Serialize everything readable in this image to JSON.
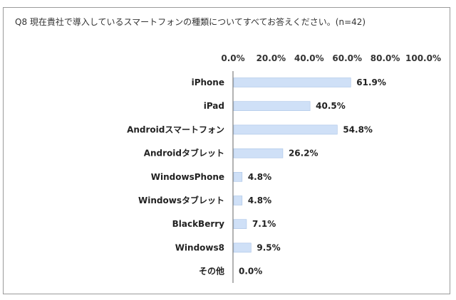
{
  "chart_data": {
    "type": "bar",
    "orientation": "horizontal",
    "title": "Q8 現在貴社で導入しているスマートフォンの種類についてすべてお答えください。(n=42)",
    "categories": [
      "iPhone",
      "iPad",
      "Androidスマートフォン",
      "Androidタブレット",
      "WindowsPhone",
      "Windowsタブレット",
      "BlackBerry",
      "Windows8",
      "その他"
    ],
    "values": [
      61.9,
      40.5,
      54.8,
      26.2,
      4.8,
      4.8,
      7.1,
      9.5,
      0.0
    ],
    "value_labels": [
      "61.9%",
      "40.5%",
      "54.8%",
      "26.2%",
      "4.8%",
      "4.8%",
      "7.1%",
      "9.5%",
      "0.0%"
    ],
    "x_ticks": [
      "0.0%",
      "20.0%",
      "40.0%",
      "60.0%",
      "80.0%",
      "100.0%"
    ],
    "xlim": [
      0,
      100
    ],
    "xlabel": "",
    "ylabel": "",
    "grid": false,
    "legend": "none",
    "bar_color": "#cfe0f7",
    "bar_stroke": "#a9c3e6"
  }
}
